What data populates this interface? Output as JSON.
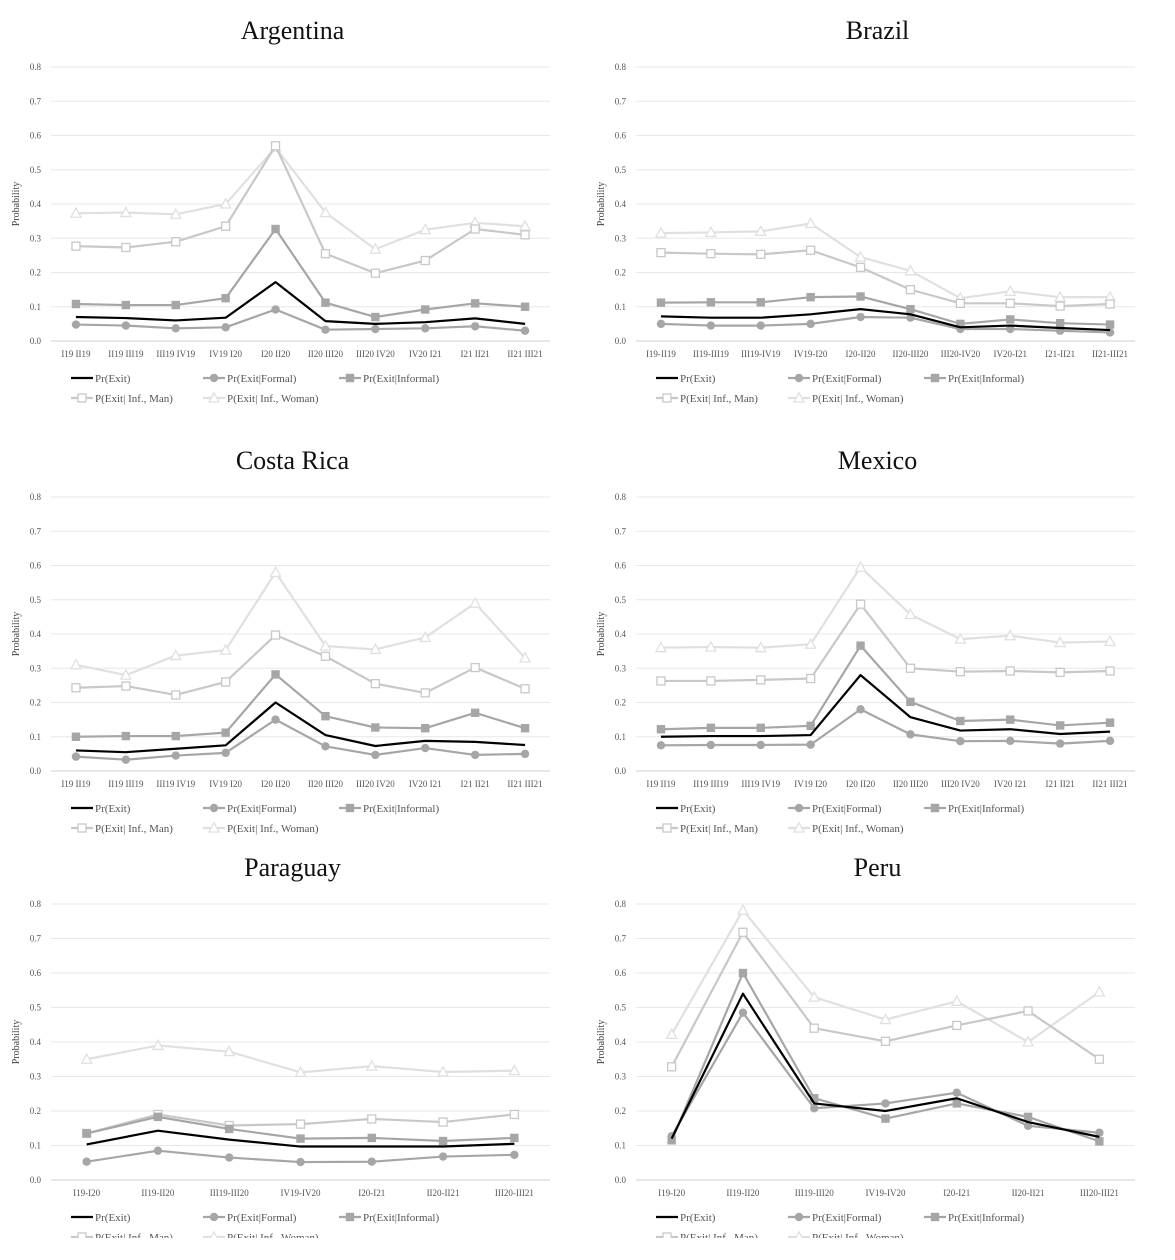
{
  "series_styles": [
    {
      "color": "#000000",
      "marker": "none",
      "width": 2.2
    },
    {
      "color": "#a6a6a6",
      "marker": "circle",
      "width": 2.2
    },
    {
      "color": "#a6a6a6",
      "marker": "square",
      "width": 2.2
    },
    {
      "color": "#c8c8c8",
      "marker": "hsquare",
      "width": 2.2
    },
    {
      "color": "#e0e0e0",
      "marker": "triangle",
      "width": 2.2
    }
  ],
  "chart_data": [
    {
      "type": "line",
      "title": "Argentina",
      "ylabel": "Probability",
      "ylim": [
        0,
        0.8
      ],
      "yticks": [
        "0.0",
        "0.1",
        "0.2",
        "0.3",
        "0.4",
        "0.5",
        "0.6",
        "0.7",
        "0.8"
      ],
      "categories": [
        "I19 II19",
        "II19 III19",
        "III19 IV19",
        "IV19 I20",
        "I20 II20",
        "II20 III20",
        "III20 IV20",
        "IV20 I21",
        "I21 II21",
        "II21 III21"
      ],
      "series": [
        {
          "name": "Pr(Exit)",
          "values": [
            0.07,
            0.067,
            0.06,
            0.068,
            0.172,
            0.058,
            0.05,
            0.055,
            0.066,
            0.05
          ]
        },
        {
          "name": "Pr(Exit|Formal)",
          "values": [
            0.048,
            0.045,
            0.037,
            0.04,
            0.092,
            0.033,
            0.035,
            0.037,
            0.043,
            0.03
          ]
        },
        {
          "name": "Pr(Exit|Informal)",
          "values": [
            0.108,
            0.105,
            0.105,
            0.125,
            0.327,
            0.112,
            0.07,
            0.092,
            0.11,
            0.1
          ]
        },
        {
          "name": "P(Exit| Inf., Man)",
          "values": [
            0.277,
            0.273,
            0.29,
            0.335,
            0.57,
            0.255,
            0.198,
            0.235,
            0.327,
            0.31
          ]
        },
        {
          "name": "P(Exit| Inf., Woman)",
          "values": [
            0.373,
            0.375,
            0.37,
            0.4,
            0.565,
            0.375,
            0.268,
            0.325,
            0.345,
            0.335
          ]
        }
      ]
    },
    {
      "type": "line",
      "title": "Brazil",
      "ylabel": "Probability",
      "ylim": [
        0,
        0.8
      ],
      "yticks": [
        "0.0",
        "0.1",
        "0.2",
        "0.3",
        "0.4",
        "0.5",
        "0.6",
        "0.7",
        "0.8"
      ],
      "categories": [
        "I19-II19",
        "II19-III19",
        "III19-IV19",
        "IV19-I20",
        "I20-II20",
        "II20-III20",
        "III20-IV20",
        "IV20-I21",
        "I21-II21",
        "II21-III21"
      ],
      "series": [
        {
          "name": "Pr(Exit)",
          "values": [
            0.072,
            0.068,
            0.068,
            0.078,
            0.093,
            0.078,
            0.04,
            0.045,
            0.038,
            0.032
          ]
        },
        {
          "name": "Pr(Exit|Formal)",
          "values": [
            0.05,
            0.045,
            0.045,
            0.05,
            0.07,
            0.068,
            0.035,
            0.035,
            0.03,
            0.025
          ]
        },
        {
          "name": "Pr(Exit|Informal)",
          "values": [
            0.112,
            0.113,
            0.113,
            0.128,
            0.13,
            0.093,
            0.05,
            0.063,
            0.052,
            0.048
          ]
        },
        {
          "name": "P(Exit| Inf., Man)",
          "values": [
            0.258,
            0.255,
            0.253,
            0.265,
            0.215,
            0.15,
            0.11,
            0.11,
            0.102,
            0.108
          ]
        },
        {
          "name": "P(Exit| Inf., Woman)",
          "values": [
            0.315,
            0.317,
            0.32,
            0.343,
            0.245,
            0.205,
            0.125,
            0.145,
            0.128,
            0.128
          ]
        }
      ]
    },
    {
      "type": "line",
      "title": "Costa Rica",
      "ylabel": "Probability",
      "ylim": [
        0,
        0.8
      ],
      "yticks": [
        "0.0",
        "0.1",
        "0.2",
        "0.3",
        "0.4",
        "0.5",
        "0.6",
        "0.7",
        "0.8"
      ],
      "categories": [
        "I19 II19",
        "II19 III19",
        "III19 IV19",
        "IV19 I20",
        "I20 II20",
        "II20 III20",
        "III20 IV20",
        "IV20 I21",
        "I21 II21",
        "II21 III21"
      ],
      "series": [
        {
          "name": "Pr(Exit)",
          "values": [
            0.06,
            0.055,
            0.065,
            0.075,
            0.2,
            0.105,
            0.073,
            0.088,
            0.085,
            0.076
          ]
        },
        {
          "name": "Pr(Exit|Formal)",
          "values": [
            0.042,
            0.033,
            0.045,
            0.053,
            0.15,
            0.072,
            0.047,
            0.067,
            0.047,
            0.05
          ]
        },
        {
          "name": "Pr(Exit|Informal)",
          "values": [
            0.1,
            0.102,
            0.102,
            0.112,
            0.282,
            0.16,
            0.127,
            0.125,
            0.17,
            0.125
          ]
        },
        {
          "name": "P(Exit| Inf., Man)",
          "values": [
            0.243,
            0.248,
            0.222,
            0.26,
            0.397,
            0.335,
            0.255,
            0.228,
            0.302,
            0.24
          ]
        },
        {
          "name": "P(Exit| Inf., Woman)",
          "values": [
            0.31,
            0.28,
            0.337,
            0.353,
            0.58,
            0.365,
            0.355,
            0.39,
            0.49,
            0.33
          ]
        }
      ]
    },
    {
      "type": "line",
      "title": "Mexico",
      "ylabel": "Probability",
      "ylim": [
        0,
        0.8
      ],
      "yticks": [
        "0.0",
        "0.1",
        "0.2",
        "0.3",
        "0.4",
        "0.5",
        "0.6",
        "0.7",
        "0.8"
      ],
      "categories": [
        "I19 II19",
        "II19 III19",
        "III19 IV19",
        "IV19 I20",
        "I20 II20",
        "II20 III20",
        "III20 IV20",
        "IV20 I21",
        "I21 II21",
        "II21 III21"
      ],
      "series": [
        {
          "name": "Pr(Exit)",
          "values": [
            0.1,
            0.102,
            0.102,
            0.105,
            0.28,
            0.157,
            0.118,
            0.122,
            0.108,
            0.115
          ]
        },
        {
          "name": "Pr(Exit|Formal)",
          "values": [
            0.075,
            0.076,
            0.076,
            0.077,
            0.18,
            0.107,
            0.087,
            0.088,
            0.08,
            0.088
          ]
        },
        {
          "name": "Pr(Exit|Informal)",
          "values": [
            0.122,
            0.126,
            0.126,
            0.132,
            0.366,
            0.202,
            0.146,
            0.15,
            0.133,
            0.141
          ]
        },
        {
          "name": "P(Exit| Inf., Man)",
          "values": [
            0.263,
            0.263,
            0.266,
            0.27,
            0.487,
            0.3,
            0.29,
            0.292,
            0.288,
            0.292
          ]
        },
        {
          "name": "P(Exit| Inf., Woman)",
          "values": [
            0.36,
            0.362,
            0.36,
            0.37,
            0.595,
            0.457,
            0.385,
            0.395,
            0.375,
            0.378
          ]
        }
      ]
    },
    {
      "type": "line",
      "title": "Paraguay",
      "ylabel": "Probability",
      "ylim": [
        0,
        0.8
      ],
      "yticks": [
        "0.0",
        "0.1",
        "0.2",
        "0.3",
        "0.4",
        "0.5",
        "0.6",
        "0.7",
        "0.8"
      ],
      "categories": [
        "I19-I20",
        "II19-II20",
        "III19-III20",
        "IV19-IV20",
        "I20-I21",
        "II20-II21",
        "III20-III21"
      ],
      "series": [
        {
          "name": "Pr(Exit)",
          "values": [
            0.103,
            0.143,
            0.117,
            0.097,
            0.097,
            0.097,
            0.105
          ]
        },
        {
          "name": "Pr(Exit|Formal)",
          "values": [
            0.053,
            0.085,
            0.065,
            0.052,
            0.053,
            0.068,
            0.073
          ]
        },
        {
          "name": "Pr(Exit|Informal)",
          "values": [
            0.135,
            0.183,
            0.148,
            0.12,
            0.122,
            0.113,
            0.122
          ]
        },
        {
          "name": "P(Exit| Inf., Man)",
          "values": [
            0.135,
            0.19,
            0.158,
            0.162,
            0.177,
            0.168,
            0.19
          ]
        },
        {
          "name": "P(Exit| Inf., Woman)",
          "values": [
            0.35,
            0.39,
            0.372,
            0.312,
            0.33,
            0.313,
            0.317
          ]
        }
      ]
    },
    {
      "type": "line",
      "title": "Peru",
      "ylabel": "Probability",
      "ylim": [
        0,
        0.8
      ],
      "yticks": [
        "0.0",
        "0.1",
        "0.2",
        "0.3",
        "0.4",
        "0.5",
        "0.6",
        "0.7",
        "0.8"
      ],
      "categories": [
        "I19-I20",
        "II19-II20",
        "III19-III20",
        "IV19-IV20",
        "I20-I21",
        "II20-II21",
        "III20-III21"
      ],
      "series": [
        {
          "name": "Pr(Exit)",
          "values": [
            0.12,
            0.54,
            0.222,
            0.2,
            0.237,
            0.168,
            0.125
          ]
        },
        {
          "name": "Pr(Exit|Formal)",
          "values": [
            0.127,
            0.485,
            0.208,
            0.222,
            0.253,
            0.157,
            0.137
          ]
        },
        {
          "name": "Pr(Exit|Informal)",
          "values": [
            0.115,
            0.6,
            0.237,
            0.178,
            0.222,
            0.183,
            0.112
          ]
        },
        {
          "name": "P(Exit| Inf., Man)",
          "values": [
            0.328,
            0.718,
            0.44,
            0.402,
            0.448,
            0.49,
            0.35
          ]
        },
        {
          "name": "P(Exit| Inf., Woman)",
          "values": [
            0.422,
            0.782,
            0.53,
            0.465,
            0.518,
            0.4,
            0.545
          ]
        }
      ]
    }
  ]
}
